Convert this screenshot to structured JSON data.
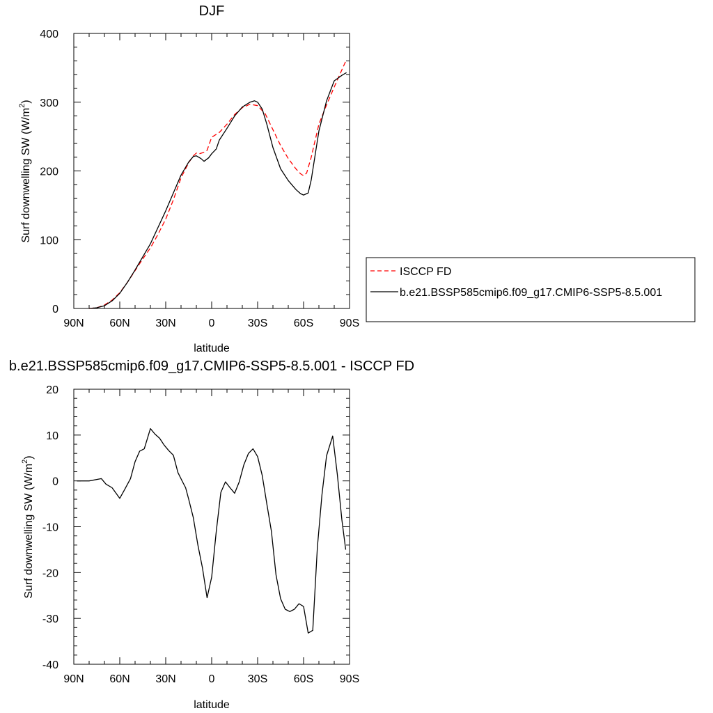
{
  "chart_data": [
    {
      "type": "line",
      "title": "DJF",
      "xlabel": "latitude",
      "ylabel": "Surf downwelling SW (W/m",
      "ylabel_sup": "2",
      "ylabel_close": ")",
      "xlim": [
        90,
        -90
      ],
      "ylim": [
        0,
        400
      ],
      "x_ticks": [
        90,
        60,
        30,
        0,
        -30,
        -60,
        -90
      ],
      "x_tick_labels": [
        "90N",
        "60N",
        "30N",
        "0",
        "30S",
        "60S",
        "90S"
      ],
      "y_ticks": [
        0,
        100,
        200,
        300,
        400
      ],
      "y_tick_labels": [
        "0",
        "100",
        "200",
        "300",
        "400"
      ],
      "legend_position": "right",
      "series": [
        {
          "name": "ISCCP FD",
          "color": "#ff0000",
          "dash": "dashed",
          "x": [
            80,
            75,
            70,
            65,
            60,
            55,
            50,
            45,
            40,
            35,
            30,
            25,
            20,
            15,
            12,
            10,
            8,
            5,
            3,
            0,
            -5,
            -10,
            -15,
            -20,
            -25,
            -30,
            -35,
            -40,
            -45,
            -50,
            -55,
            -58,
            -60,
            -62,
            -65,
            -70,
            -75,
            -80,
            -85,
            -88
          ],
          "y": [
            0,
            1,
            5,
            12,
            23,
            38,
            55,
            72,
            88,
            108,
            130,
            158,
            190,
            212,
            222,
            226,
            225,
            227,
            230,
            249,
            256,
            268,
            282,
            292,
            297,
            295,
            283,
            260,
            237,
            218,
            203,
            196,
            193,
            197,
            220,
            268,
            296,
            322,
            347,
            362
          ]
        },
        {
          "name": "b.e21.BSSP585cmip6.f09_g17.CMIP6-SSP5-8.5.001",
          "color": "#000000",
          "dash": "solid",
          "x": [
            80,
            75,
            70,
            65,
            60,
            55,
            50,
            45,
            40,
            35,
            30,
            25,
            20,
            15,
            12,
            10,
            7,
            5,
            2,
            0,
            -3,
            -5,
            -10,
            -15,
            -20,
            -25,
            -28,
            -30,
            -33,
            -36,
            -40,
            -45,
            -50,
            -55,
            -58,
            -60,
            -63,
            -65,
            -70,
            -75,
            -80,
            -85,
            -88
          ],
          "y": [
            0,
            1,
            4,
            11,
            22,
            38,
            56,
            75,
            94,
            118,
            142,
            168,
            194,
            213,
            221,
            222,
            218,
            214,
            219,
            225,
            232,
            245,
            262,
            280,
            293,
            300,
            302,
            300,
            290,
            268,
            234,
            203,
            186,
            173,
            167,
            165,
            168,
            187,
            258,
            302,
            331,
            339,
            343
          ]
        }
      ]
    },
    {
      "type": "line",
      "title": "b.e21.BSSP585cmip6.f09_g17.CMIP6-SSP5-8.5.001 - ISCCP FD",
      "xlabel": "latitude",
      "ylabel": "Surf downwelling SW (W/m",
      "ylabel_sup": "2",
      "ylabel_close": ")",
      "xlim": [
        90,
        -90
      ],
      "ylim": [
        -40,
        20
      ],
      "x_ticks": [
        90,
        60,
        30,
        0,
        -30,
        -60,
        -90
      ],
      "x_tick_labels": [
        "90N",
        "60N",
        "30N",
        "0",
        "30S",
        "60S",
        "90S"
      ],
      "y_ticks": [
        -40,
        -30,
        -20,
        -10,
        0,
        10,
        20
      ],
      "y_tick_labels": [
        "-40",
        "-30",
        "-20",
        "-10",
        "0",
        "10",
        "20"
      ],
      "series": [
        {
          "color": "#000000",
          "x": [
            88,
            80,
            72,
            69,
            65,
            60,
            57,
            53,
            50,
            47,
            44,
            40,
            37,
            34,
            31,
            28,
            25,
            22,
            19,
            17,
            15,
            12,
            9,
            6,
            3,
            0,
            -3,
            -6,
            -9,
            -12,
            -15,
            -18,
            -21,
            -24,
            -27,
            -30,
            -33,
            -36,
            -39,
            -42,
            -45,
            -48,
            -51,
            -54,
            -57,
            -60,
            -63,
            -66,
            -69,
            -72,
            -75,
            -79,
            -82,
            -85,
            -87.5
          ],
          "y": [
            0,
            0,
            0.5,
            -0.7,
            -1.5,
            -3.8,
            -2.0,
            0.5,
            4.2,
            6.5,
            7.0,
            11.4,
            10.2,
            9.3,
            7.8,
            6.6,
            5.6,
            1.8,
            -0.2,
            -1.5,
            -4,
            -8,
            -14,
            -19,
            -25.5,
            -21,
            -11,
            -2.5,
            -0.2,
            -1.5,
            -2.7,
            -0.2,
            3.5,
            6,
            7,
            5.3,
            1.2,
            -5,
            -11,
            -20.5,
            -25.7,
            -28,
            -28.5,
            -28,
            -26.8,
            -27.4,
            -33.2,
            -32.6,
            -14.5,
            -3,
            5.5,
            9.8,
            1.5,
            -8.5,
            -15
          ]
        }
      ]
    }
  ]
}
